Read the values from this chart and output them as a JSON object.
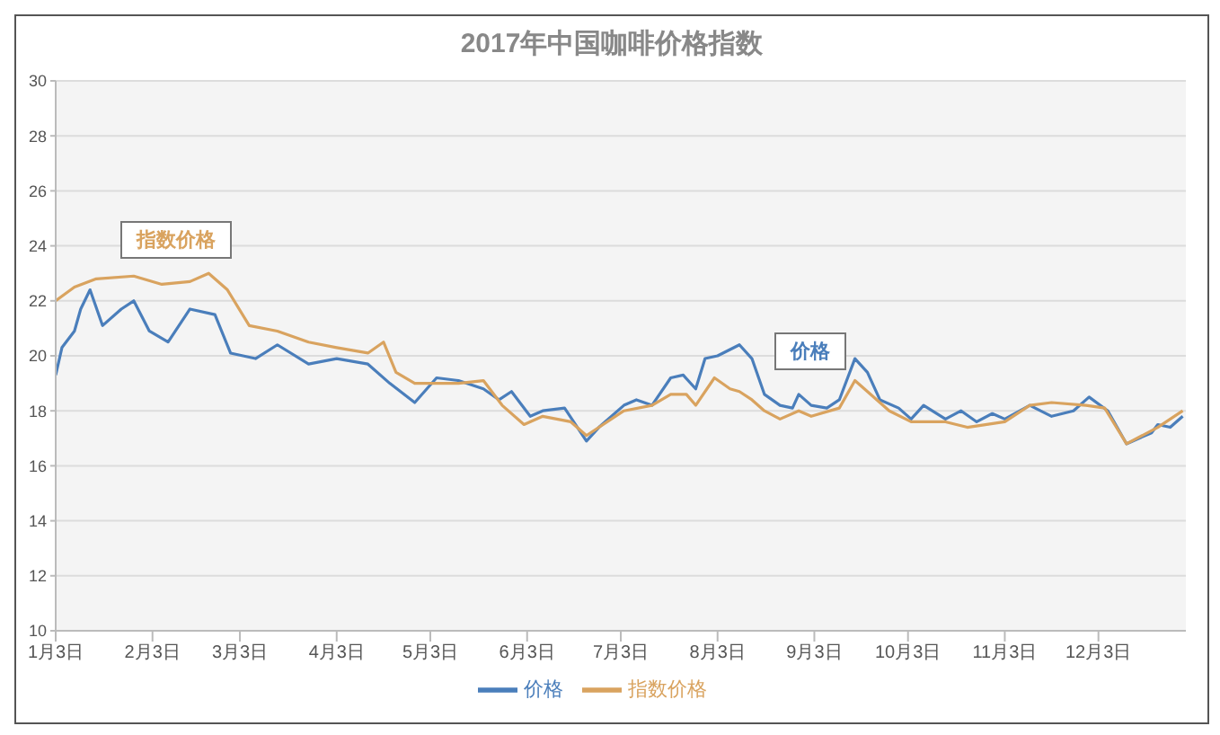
{
  "chart_data": {
    "type": "line",
    "title": "2017年中国咖啡价格指数",
    "xlim": [
      "2017-01-03",
      "2017-12-31"
    ],
    "xticks": [
      {
        "value": "2017-01-03",
        "label": "1月3日"
      },
      {
        "value": "2017-02-03",
        "label": "2月3日"
      },
      {
        "value": "2017-03-03",
        "label": "3月3日"
      },
      {
        "value": "2017-04-03",
        "label": "4月3日"
      },
      {
        "value": "2017-05-03",
        "label": "5月3日"
      },
      {
        "value": "2017-06-03",
        "label": "6月3日"
      },
      {
        "value": "2017-07-03",
        "label": "7月3日"
      },
      {
        "value": "2017-08-03",
        "label": "8月3日"
      },
      {
        "value": "2017-09-03",
        "label": "9月3日"
      },
      {
        "value": "2017-10-03",
        "label": "10月3日"
      },
      {
        "value": "2017-11-03",
        "label": "11月3日"
      },
      {
        "value": "2017-12-03",
        "label": "12月3日"
      }
    ],
    "ylim": [
      10,
      30
    ],
    "yticks": [
      10,
      12,
      14,
      16,
      18,
      20,
      22,
      24,
      26,
      28,
      30
    ],
    "grid": "y",
    "legend": "bottom",
    "series": [
      {
        "name": "价格",
        "color": "#4a7ebb",
        "x": [
          "2017-01-03",
          "2017-01-05",
          "2017-01-09",
          "2017-01-11",
          "2017-01-14",
          "2017-01-18",
          "2017-01-24",
          "2017-01-28",
          "2017-02-02",
          "2017-02-08",
          "2017-02-15",
          "2017-02-23",
          "2017-02-28",
          "2017-03-08",
          "2017-03-15",
          "2017-03-25",
          "2017-04-03",
          "2017-04-13",
          "2017-04-20",
          "2017-04-28",
          "2017-05-05",
          "2017-05-12",
          "2017-05-20",
          "2017-05-25",
          "2017-05-29",
          "2017-06-04",
          "2017-06-08",
          "2017-06-15",
          "2017-06-22",
          "2017-06-26",
          "2017-07-04",
          "2017-07-08",
          "2017-07-13",
          "2017-07-19",
          "2017-07-23",
          "2017-07-27",
          "2017-07-30",
          "2017-08-03",
          "2017-08-10",
          "2017-08-14",
          "2017-08-18",
          "2017-08-23",
          "2017-08-27",
          "2017-08-29",
          "2017-09-02",
          "2017-09-07",
          "2017-09-11",
          "2017-09-16",
          "2017-09-20",
          "2017-09-24",
          "2017-09-30",
          "2017-10-04",
          "2017-10-08",
          "2017-10-15",
          "2017-10-20",
          "2017-10-25",
          "2017-10-30",
          "2017-11-03",
          "2017-11-11",
          "2017-11-18",
          "2017-11-25",
          "2017-11-30",
          "2017-12-06",
          "2017-12-12",
          "2017-12-20",
          "2017-12-22",
          "2017-12-26",
          "2017-12-30"
        ],
        "values": [
          19.3,
          20.3,
          20.9,
          21.7,
          22.4,
          21.1,
          21.7,
          22.0,
          20.9,
          20.5,
          21.7,
          21.5,
          20.1,
          19.9,
          20.4,
          19.7,
          19.9,
          19.7,
          19.0,
          18.3,
          19.2,
          19.1,
          18.8,
          18.4,
          18.7,
          17.8,
          18.0,
          18.1,
          16.9,
          17.4,
          18.2,
          18.4,
          18.2,
          19.2,
          19.3,
          18.8,
          19.9,
          20.0,
          20.4,
          19.9,
          18.6,
          18.2,
          18.1,
          18.6,
          18.2,
          18.1,
          18.4,
          19.9,
          19.4,
          18.4,
          18.1,
          17.7,
          18.2,
          17.7,
          18.0,
          17.6,
          17.9,
          17.7,
          18.2,
          17.8,
          18.0,
          18.5,
          18.0,
          16.8,
          17.2,
          17.5,
          17.4,
          17.8
        ]
      },
      {
        "name": "指数价格",
        "color": "#d9a35f",
        "x": [
          "2017-01-03",
          "2017-01-09",
          "2017-01-16",
          "2017-01-28",
          "2017-02-06",
          "2017-02-15",
          "2017-02-21",
          "2017-02-27",
          "2017-03-06",
          "2017-03-15",
          "2017-03-25",
          "2017-04-03",
          "2017-04-13",
          "2017-04-18",
          "2017-04-22",
          "2017-04-28",
          "2017-05-05",
          "2017-05-12",
          "2017-05-20",
          "2017-05-26",
          "2017-06-02",
          "2017-06-08",
          "2017-06-17",
          "2017-06-22",
          "2017-07-04",
          "2017-07-13",
          "2017-07-19",
          "2017-07-24",
          "2017-07-27",
          "2017-08-02",
          "2017-08-07",
          "2017-08-10",
          "2017-08-14",
          "2017-08-18",
          "2017-08-23",
          "2017-08-29",
          "2017-09-02",
          "2017-09-11",
          "2017-09-16",
          "2017-09-20",
          "2017-09-27",
          "2017-10-04",
          "2017-10-15",
          "2017-10-22",
          "2017-11-03",
          "2017-11-11",
          "2017-11-18",
          "2017-11-29",
          "2017-12-05",
          "2017-12-12",
          "2017-12-22",
          "2017-12-30"
        ],
        "values": [
          22.0,
          22.5,
          22.8,
          22.9,
          22.6,
          22.7,
          23.0,
          22.4,
          21.1,
          20.9,
          20.5,
          20.3,
          20.1,
          20.5,
          19.4,
          19.0,
          19.0,
          19.0,
          19.1,
          18.2,
          17.5,
          17.8,
          17.6,
          17.1,
          18.0,
          18.2,
          18.6,
          18.6,
          18.2,
          19.2,
          18.8,
          18.7,
          18.4,
          18.0,
          17.7,
          18.0,
          17.8,
          18.1,
          19.1,
          18.7,
          18.0,
          17.6,
          17.6,
          17.4,
          17.6,
          18.2,
          18.3,
          18.2,
          18.1,
          16.8,
          17.4,
          18.0
        ]
      }
    ],
    "annotations": [
      "指数价格",
      "价格"
    ]
  }
}
